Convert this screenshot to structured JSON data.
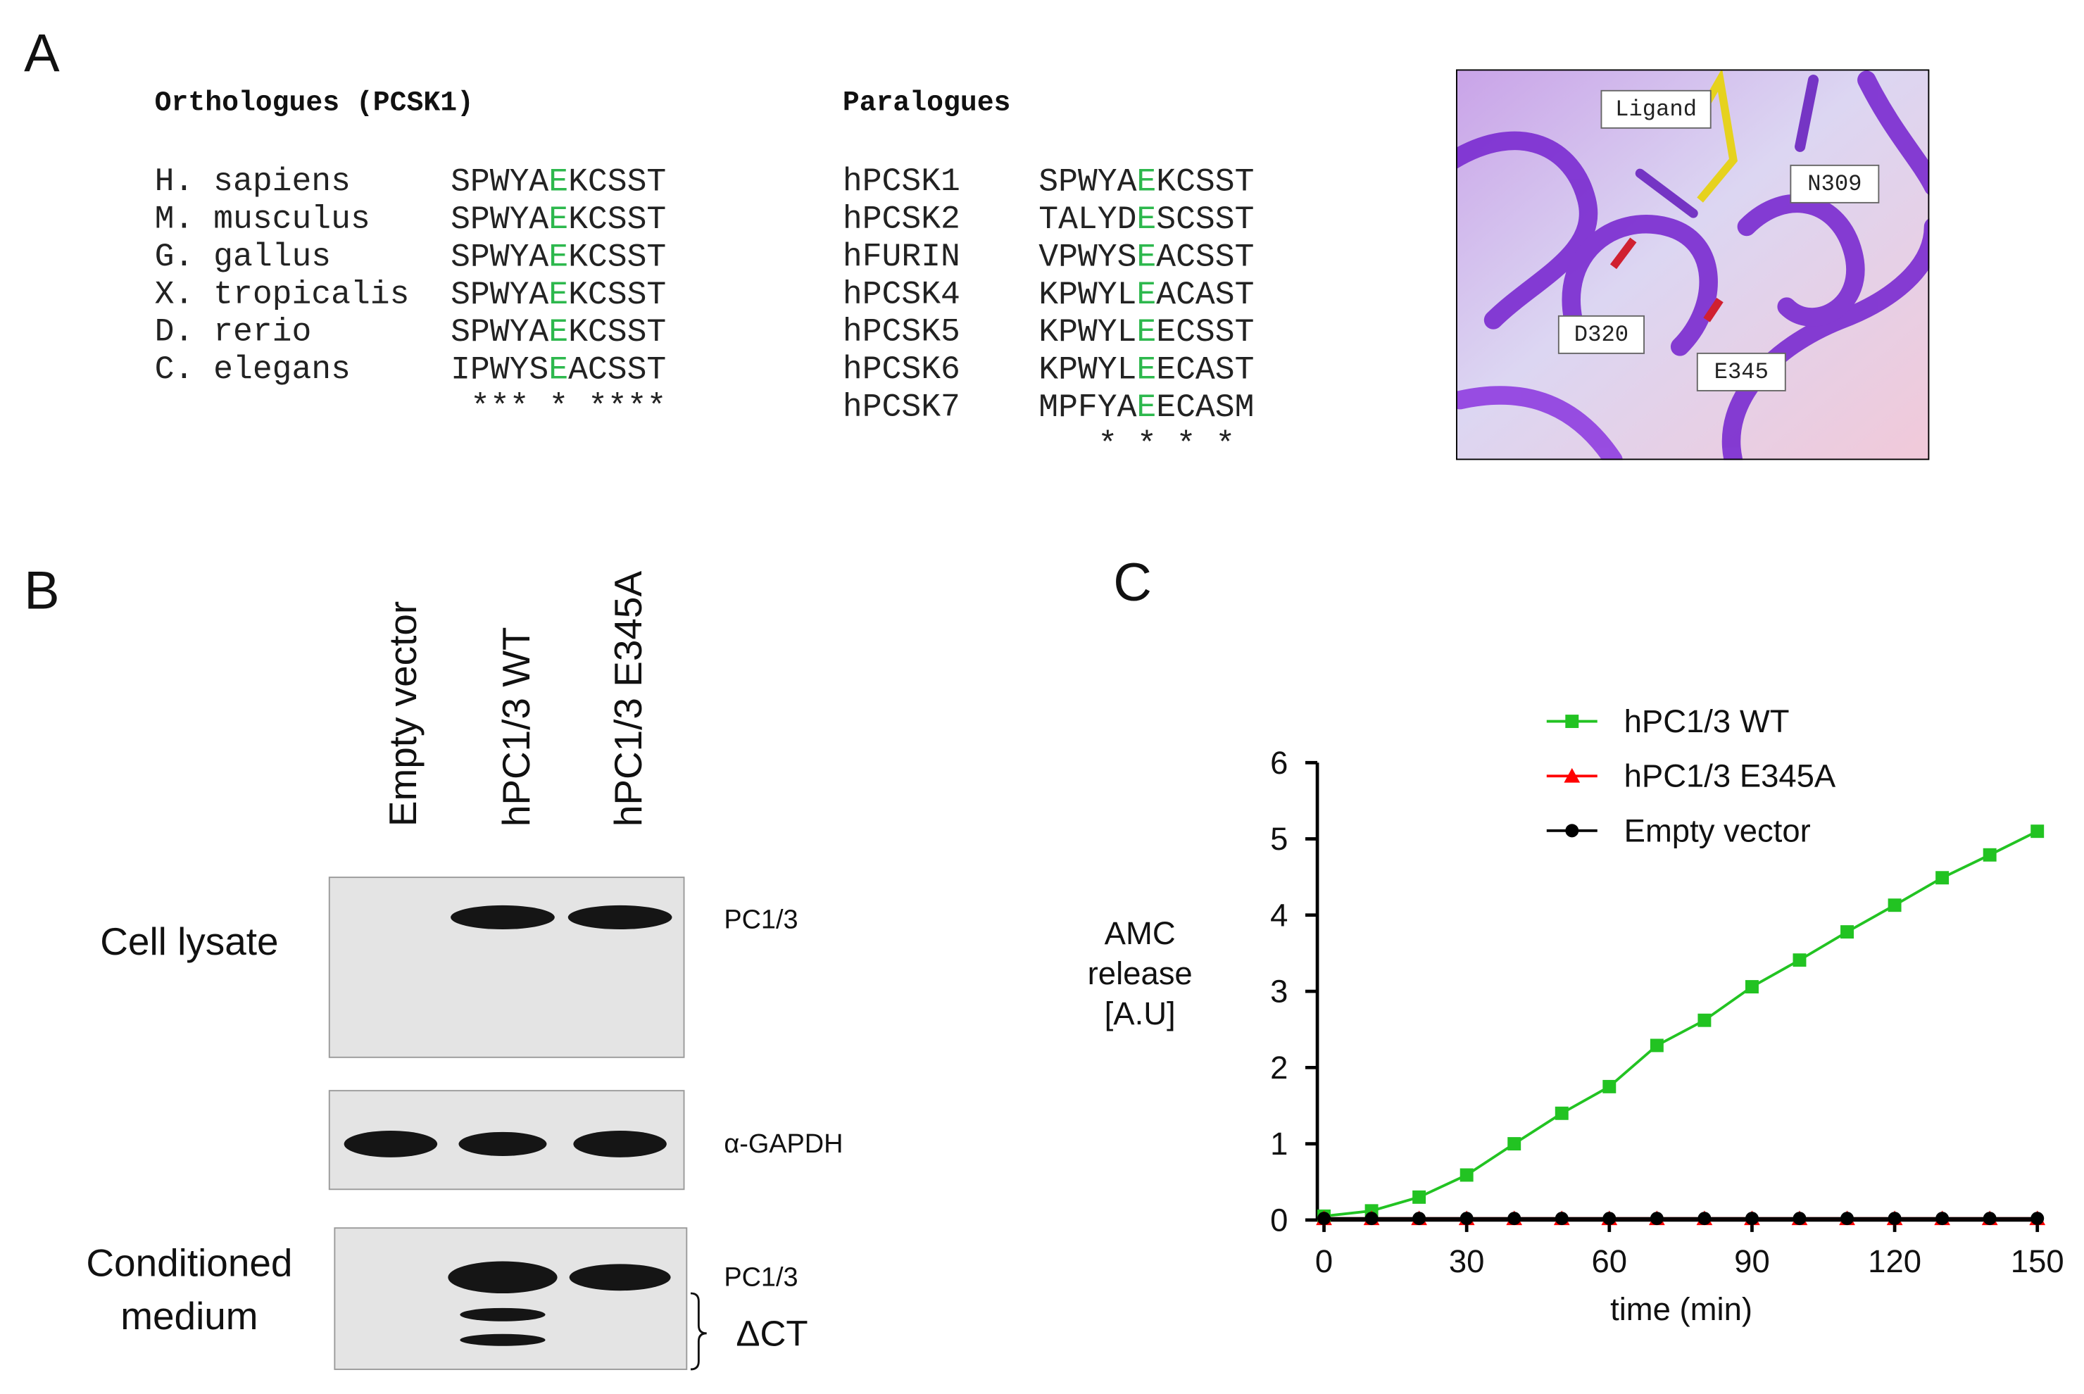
{
  "panel_labels": [
    "A",
    "B",
    "C"
  ],
  "panel_a": {
    "orthologues": {
      "title": "Orthologues (PCSK1)",
      "rows": [
        {
          "name": "H. sapiens",
          "seq": [
            "SPWYA",
            "E",
            "KCSST"
          ]
        },
        {
          "name": "M. musculus",
          "seq": [
            "SPWYA",
            "E",
            "KCSST"
          ]
        },
        {
          "name": "G. gallus",
          "seq": [
            "SPWYA",
            "E",
            "KCSST"
          ]
        },
        {
          "name": "X. tropicalis",
          "seq": [
            "SPWYA",
            "E",
            "KCSST"
          ]
        },
        {
          "name": "D. rerio",
          "seq": [
            "SPWYA",
            "E",
            "KCSST"
          ]
        },
        {
          "name": "C. elegans",
          "seq": [
            "IPWYS",
            "E",
            "ACSST"
          ]
        }
      ],
      "conservation": "*** * ****"
    },
    "paralogues": {
      "title": "Paralogues",
      "rows": [
        {
          "name": "hPCSK1",
          "seq": [
            "SPWYA",
            "E",
            "KCSST"
          ]
        },
        {
          "name": "hPCSK2",
          "seq": [
            "TALYD",
            "E",
            "SCSST"
          ]
        },
        {
          "name": "hFURIN",
          "seq": [
            "VPWYS",
            "E",
            "ACSST"
          ]
        },
        {
          "name": "hPCSK4",
          "seq": [
            "KPWYL",
            "E",
            "ACAST"
          ]
        },
        {
          "name": "hPCSK5",
          "seq": [
            "KPWYL",
            "E",
            "ECSST"
          ]
        },
        {
          "name": "hPCSK6",
          "seq": [
            "KPWYL",
            "E",
            "ECAST"
          ]
        },
        {
          "name": "hPCSK7",
          "seq": [
            "MPFYA",
            "E",
            "ECASM"
          ]
        }
      ],
      "conservation": "* * * *"
    },
    "structure_labels": [
      "Ligand",
      "N309",
      "D320",
      "E345"
    ]
  },
  "panel_b": {
    "lanes": [
      "Empty vector",
      "hPC1/3 WT",
      "hPC1/3 E345A"
    ],
    "blots": [
      {
        "label": [
          "Cell lysate"
        ],
        "marker": "PC1/3"
      },
      {
        "label": [],
        "marker": "α-GAPDH"
      },
      {
        "label": [
          "Conditioned",
          "medium"
        ],
        "marker": "PC1/3",
        "fragment": "ΔCT"
      }
    ]
  },
  "chart_data": {
    "type": "line",
    "x_label": "time (min)",
    "y_label": [
      "AMC",
      "release",
      "[A.U]"
    ],
    "x": [
      0,
      10,
      20,
      30,
      40,
      50,
      60,
      70,
      80,
      90,
      100,
      110,
      120,
      130,
      140,
      150
    ],
    "series": [
      {
        "name": "hPC1/3 WT",
        "color": "#22c322",
        "marker": "square",
        "values": [
          0.05,
          0.12,
          0.3,
          0.59,
          1.0,
          1.4,
          1.75,
          2.29,
          2.62,
          3.06,
          3.41,
          3.78,
          4.13,
          4.49,
          4.79,
          5.1
        ]
      },
      {
        "name": "hPC1/3 E345A",
        "color": "#ff0000",
        "marker": "triangle",
        "values": [
          0.02,
          0.02,
          0.02,
          0.02,
          0.02,
          0.02,
          0.02,
          0.02,
          0.02,
          0.02,
          0.02,
          0.02,
          0.02,
          0.02,
          0.02,
          0.02
        ]
      },
      {
        "name": "Empty vector",
        "color": "#000000",
        "marker": "circle",
        "values": [
          0.02,
          0.02,
          0.02,
          0.02,
          0.02,
          0.02,
          0.02,
          0.02,
          0.02,
          0.02,
          0.02,
          0.02,
          0.02,
          0.02,
          0.02,
          0.02
        ]
      }
    ],
    "xlim": [
      0,
      150
    ],
    "xticks": [
      0,
      30,
      60,
      90,
      120,
      150
    ],
    "ylim": [
      0,
      6
    ],
    "yticks": [
      0,
      1,
      2,
      3,
      4,
      5,
      6
    ],
    "grid": false,
    "legend": "top"
  }
}
